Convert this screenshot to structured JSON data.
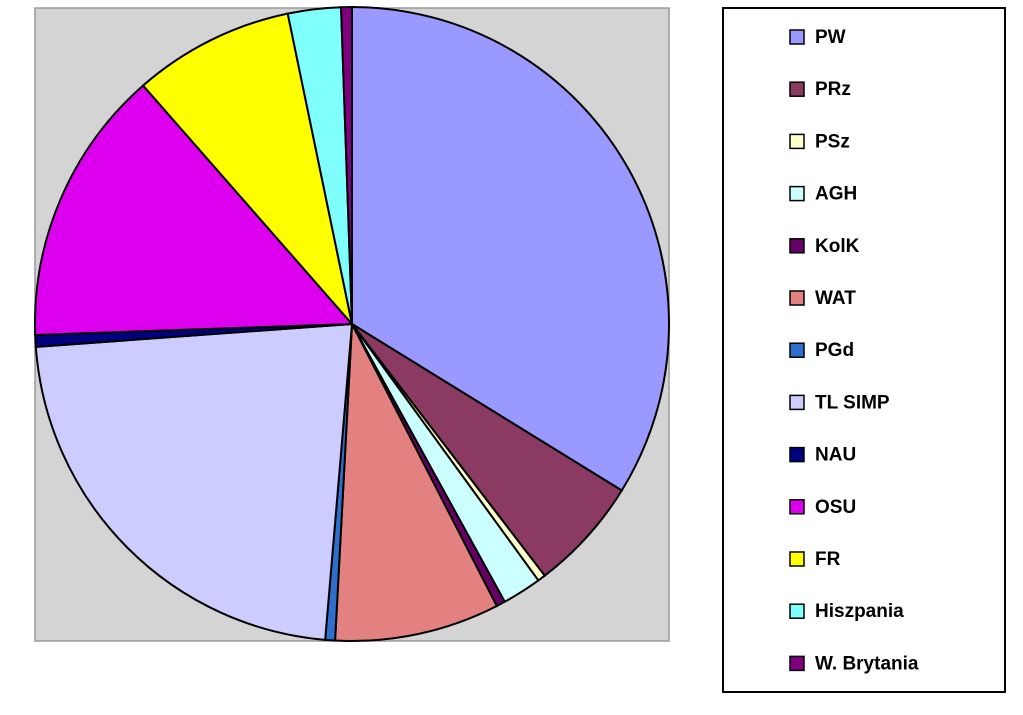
{
  "chart_data": {
    "type": "pie",
    "categories": [
      "PW",
      "PRz",
      "PSz",
      "AGH",
      "KolK",
      "WAT",
      "PGd",
      "TL SIMP",
      "NAU",
      "OSU",
      "FR",
      "Hiszpania",
      "W. Brytania"
    ],
    "values": [
      33.8,
      5.8,
      0.4,
      2.0,
      0.45,
      8.4,
      0.5,
      22.5,
      0.6,
      14.1,
      8.2,
      2.7,
      0.55
    ],
    "colors": [
      "#9999ff",
      "#8b3a62",
      "#ffffcc",
      "#ccffff",
      "#660066",
      "#e38080",
      "#2e6fcc",
      "#ccccff",
      "#000080",
      "#dd00ee",
      "#ffff00",
      "#80ffff",
      "#800080"
    ],
    "legend": "right"
  }
}
